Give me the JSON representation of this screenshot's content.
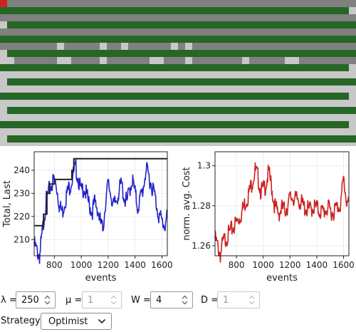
{
  "simulation": {
    "background": "#c8c8c8",
    "colors": {
      "grid": "#808080",
      "lane": "#266626",
      "highlight": "#cc2222"
    }
  },
  "charts": [
    {
      "name": "total-last",
      "ylabel": "Total, Last",
      "xlabel": "events",
      "xlim": [
        650,
        1640
      ],
      "ylim": [
        203,
        248
      ],
      "xticks": [
        800,
        1000,
        1200,
        1400,
        1600
      ],
      "yticks": [
        210,
        220,
        230,
        240
      ],
      "grid": true,
      "series": [
        {
          "color": "#2222cc",
          "style": "noisy",
          "x": [
            650,
            670,
            690,
            705,
            720,
            740,
            760,
            780,
            800,
            820,
            840,
            860,
            880,
            900,
            920,
            940,
            960,
            980,
            1000,
            1020,
            1040,
            1060,
            1080,
            1100,
            1120,
            1140,
            1160,
            1180,
            1200,
            1220,
            1240,
            1260,
            1280,
            1300,
            1320,
            1340,
            1360,
            1380,
            1400,
            1420,
            1440,
            1460,
            1480,
            1500,
            1520,
            1540,
            1560,
            1580,
            1600,
            1620,
            1640
          ],
          "y": [
            210,
            207,
            205,
            212,
            220,
            229,
            233,
            236,
            238,
            234,
            226,
            224,
            229,
            233,
            236,
            240,
            243,
            238,
            232,
            235,
            231,
            227,
            224,
            228,
            226,
            220,
            216,
            228,
            236,
            232,
            226,
            229,
            233,
            236,
            230,
            228,
            234,
            238,
            232,
            226,
            230,
            234,
            242,
            240,
            236,
            233,
            227,
            222,
            220,
            218,
            222
          ]
        },
        {
          "color": "#222222",
          "style": "step",
          "x": [
            650,
            700,
            720,
            745,
            765,
            800,
            840,
            895,
            930,
            945,
            1640
          ],
          "y": [
            216,
            216,
            221,
            230,
            234,
            236,
            236,
            236,
            240,
            245,
            245
          ]
        }
      ]
    },
    {
      "name": "avg-cost",
      "ylabel": "norm. avg. Cost",
      "xlabel": "events",
      "xlim": [
        640,
        1640
      ],
      "ylim": [
        1.255,
        1.307
      ],
      "xticks": [
        800,
        1000,
        1200,
        1400,
        1600
      ],
      "yticks": [
        1.26,
        1.28,
        1.3
      ],
      "ytick_labels": [
        "1.26",
        "1.28",
        "1.3"
      ],
      "grid": true,
      "series": [
        {
          "color": "#cc2222",
          "style": "noisy",
          "x": [
            640,
            660,
            680,
            700,
            720,
            740,
            760,
            780,
            800,
            820,
            840,
            860,
            880,
            900,
            920,
            940,
            960,
            980,
            1000,
            1020,
            1040,
            1060,
            1080,
            1100,
            1120,
            1140,
            1160,
            1180,
            1200,
            1220,
            1240,
            1260,
            1280,
            1300,
            1320,
            1340,
            1360,
            1380,
            1400,
            1420,
            1440,
            1460,
            1480,
            1500,
            1520,
            1540,
            1560,
            1580,
            1600,
            1620,
            1640
          ],
          "y": [
            1.266,
            1.262,
            1.258,
            1.264,
            1.266,
            1.268,
            1.27,
            1.272,
            1.274,
            1.276,
            1.279,
            1.283,
            1.286,
            1.29,
            1.295,
            1.3,
            1.297,
            1.29,
            1.29,
            1.293,
            1.299,
            1.293,
            1.284,
            1.28,
            1.279,
            1.281,
            1.28,
            1.282,
            1.286,
            1.287,
            1.285,
            1.286,
            1.284,
            1.282,
            1.281,
            1.28,
            1.281,
            1.282,
            1.281,
            1.28,
            1.279,
            1.28,
            1.281,
            1.28,
            1.279,
            1.281,
            1.282,
            1.284,
            1.296,
            1.286,
            1.282
          ]
        }
      ]
    }
  ],
  "controls": {
    "lambda": {
      "label": "λ =",
      "value": "250",
      "disabled": false
    },
    "mu": {
      "label": "μ =",
      "value": "1",
      "disabled": true
    },
    "w": {
      "label": "W =",
      "value": "4",
      "disabled": false
    },
    "d": {
      "label": "D =",
      "value": "1",
      "disabled": true
    },
    "strategy": {
      "label": "Strategy:",
      "selected": "Optimist"
    }
  }
}
